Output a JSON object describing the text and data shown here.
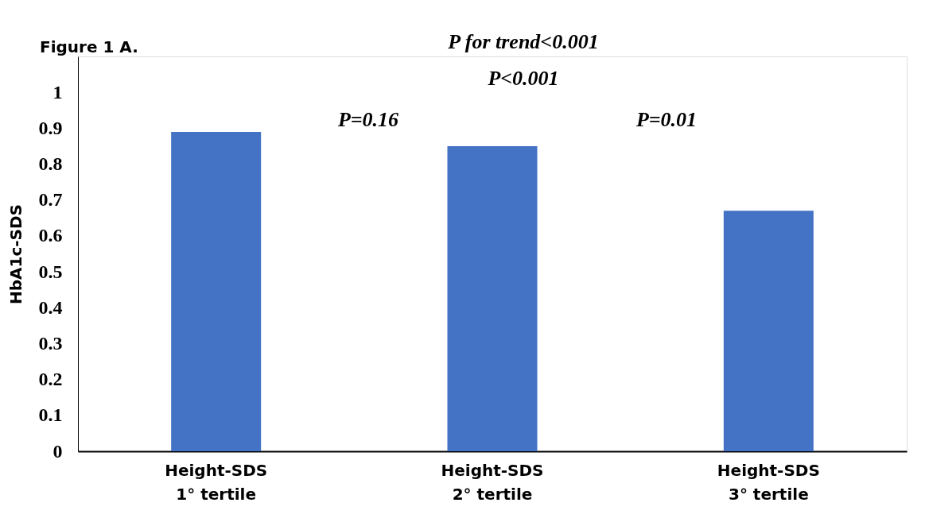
{
  "chart_data": {
    "type": "bar",
    "title": "Figure 1 A.",
    "ylabel": "HbA1c-SDS",
    "categories": [
      "Height-SDS 1° tertile",
      "Height-SDS 2° tertile",
      "Height-SDS 3° tertile"
    ],
    "values": [
      0.89,
      0.85,
      0.67
    ],
    "color": "#4472c4",
    "ylim": [
      0,
      1.1
    ],
    "yticks": [
      0,
      0.1,
      0.2,
      0.3,
      0.4,
      0.5,
      0.6,
      0.7,
      0.8,
      0.9,
      1
    ],
    "grid": false,
    "annotations": [
      "P for trend<0.001",
      "P<0.001",
      "P=0.16",
      "P=0.01"
    ]
  }
}
